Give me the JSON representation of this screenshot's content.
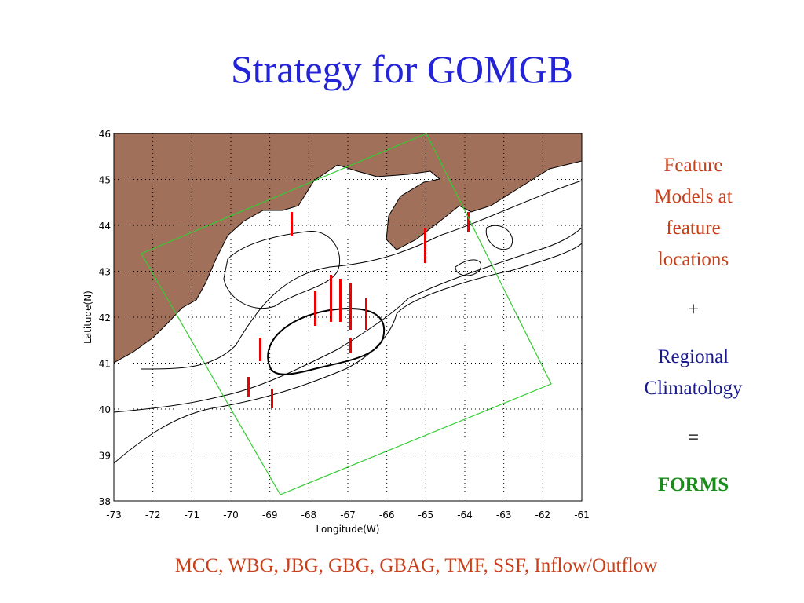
{
  "title": "Strategy for GOMGB",
  "figure": {
    "type": "map",
    "xlabel": "Longitude(W)",
    "ylabel": "Latitude(N)",
    "xlim": [
      -73,
      -61
    ],
    "ylim": [
      38,
      46
    ],
    "xticks": [
      -73,
      -72,
      -71,
      -70,
      -69,
      -68,
      -67,
      -66,
      -65,
      -64,
      -63,
      -62,
      -61
    ],
    "yticks": [
      38,
      39,
      40,
      41,
      42,
      43,
      44,
      45,
      46
    ],
    "grid": true
  },
  "side": {
    "line1": [
      "Feature",
      "Models at",
      "feature",
      "locations"
    ],
    "plus": "+",
    "line2": [
      "Regional",
      "Climatology"
    ],
    "equals": "=",
    "result": "FORMS"
  },
  "footer": "MCC, WBG, JBG, GBG, GBAG, TMF, SSF, Inflow/Outflow"
}
